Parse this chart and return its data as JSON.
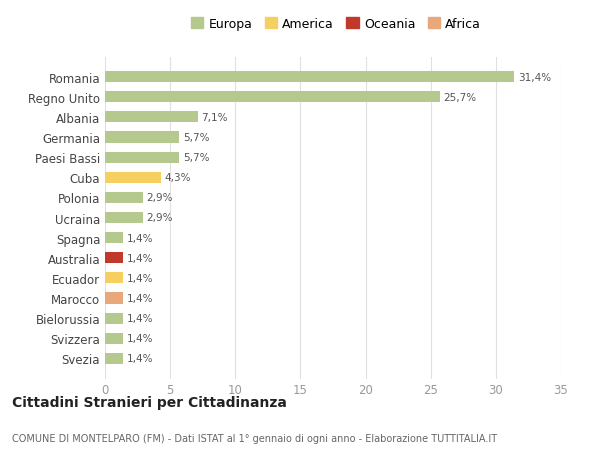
{
  "title": "Cittadini Stranieri per Cittadinanza",
  "subtitle": "COMUNE DI MONTELPARO (FM) - Dati ISTAT al 1° gennaio di ogni anno - Elaborazione TUTTITALIA.IT",
  "categories": [
    "Romania",
    "Regno Unito",
    "Albania",
    "Germania",
    "Paesi Bassi",
    "Cuba",
    "Polonia",
    "Ucraina",
    "Spagna",
    "Australia",
    "Ecuador",
    "Marocco",
    "Bielorussia",
    "Svizzera",
    "Svezia"
  ],
  "values": [
    31.4,
    25.7,
    7.1,
    5.7,
    5.7,
    4.3,
    2.9,
    2.9,
    1.4,
    1.4,
    1.4,
    1.4,
    1.4,
    1.4,
    1.4
  ],
  "labels": [
    "31,4%",
    "25,7%",
    "7,1%",
    "5,7%",
    "5,7%",
    "4,3%",
    "2,9%",
    "2,9%",
    "1,4%",
    "1,4%",
    "1,4%",
    "1,4%",
    "1,4%",
    "1,4%",
    "1,4%"
  ],
  "continents": [
    "Europa",
    "Europa",
    "Europa",
    "Europa",
    "Europa",
    "America",
    "Europa",
    "Europa",
    "Europa",
    "Oceania",
    "America",
    "Africa",
    "Europa",
    "Europa",
    "Europa"
  ],
  "continent_colors": {
    "Europa": "#b5c98e",
    "America": "#f5d060",
    "Oceania": "#c0392b",
    "Africa": "#e8a87c"
  },
  "legend_colors": {
    "Europa": "#b5c98e",
    "America": "#f5d060",
    "Oceania": "#c0392b",
    "Africa": "#e8a87c"
  },
  "xlim": [
    0,
    35
  ],
  "xticks": [
    0,
    5,
    10,
    15,
    20,
    25,
    30,
    35
  ],
  "background_color": "#ffffff",
  "grid_color": "#e0e0e0"
}
